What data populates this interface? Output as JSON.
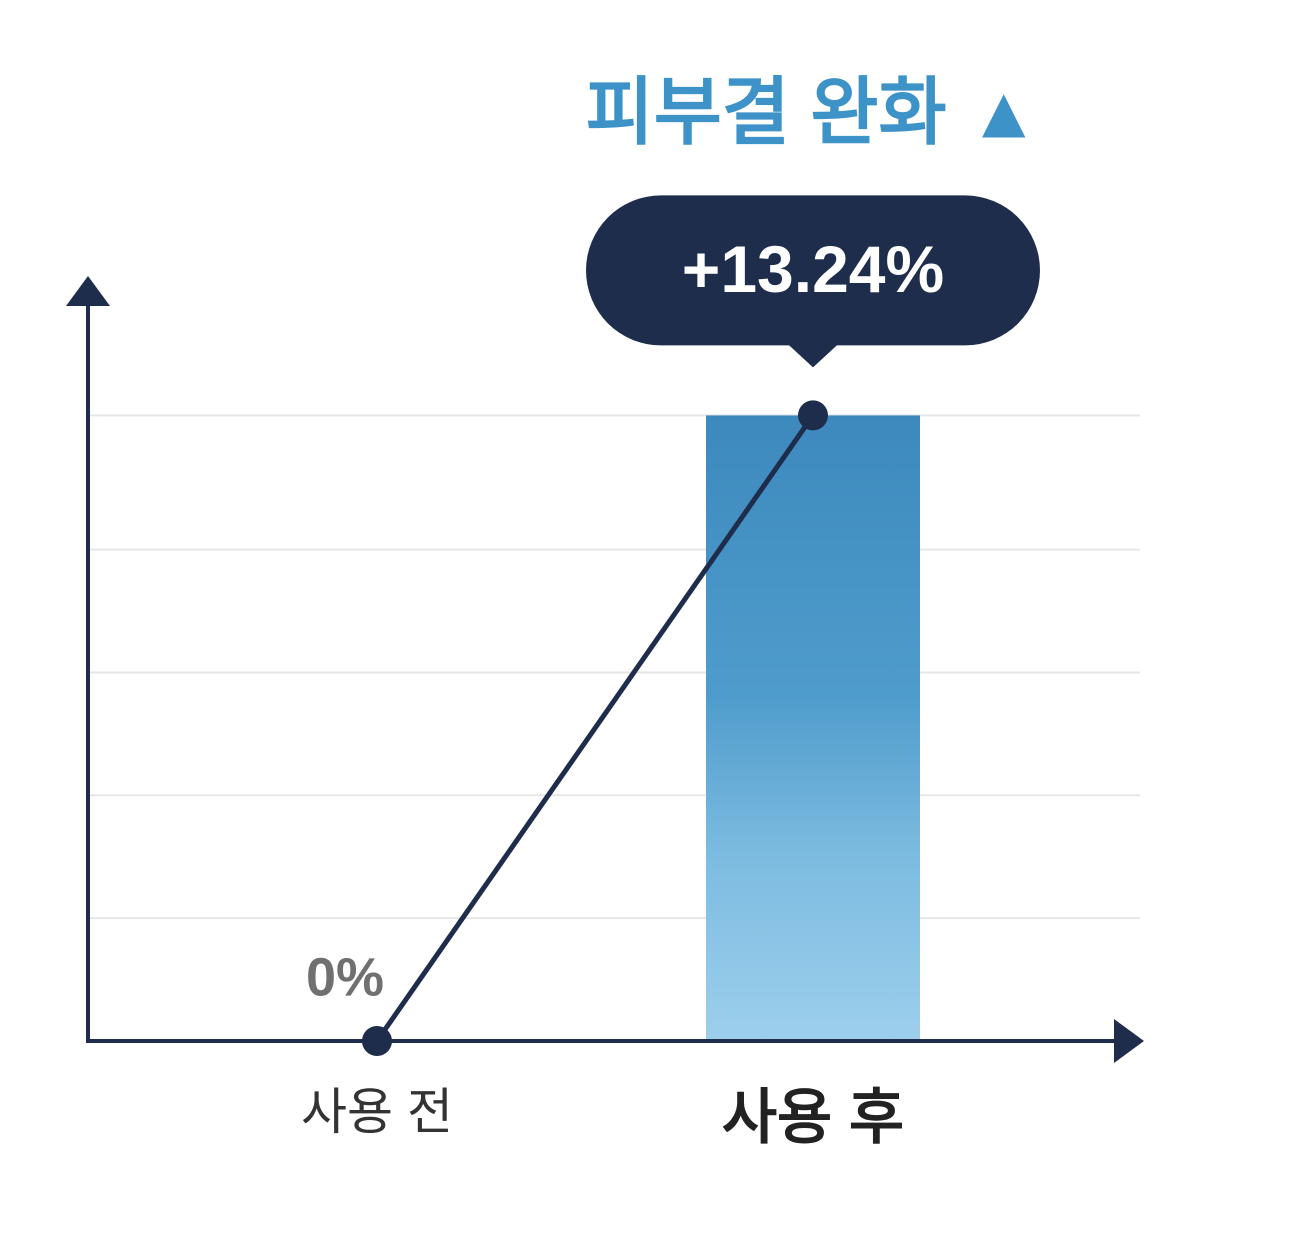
{
  "chart_data": {
    "type": "bar",
    "title": "피부결 완화 ▲",
    "categories": [
      "사용 전",
      "사용 후"
    ],
    "values": [
      0,
      13.24
    ],
    "value_labels": [
      "0%",
      "+13.24%"
    ],
    "color": "#4a9acb",
    "line_overlay": true,
    "line_color": "#1f2d4d",
    "ylim": [
      0,
      16
    ],
    "yticks": [
      2.6,
      5.2,
      7.8,
      10.4,
      13.24
    ],
    "grid": true
  }
}
